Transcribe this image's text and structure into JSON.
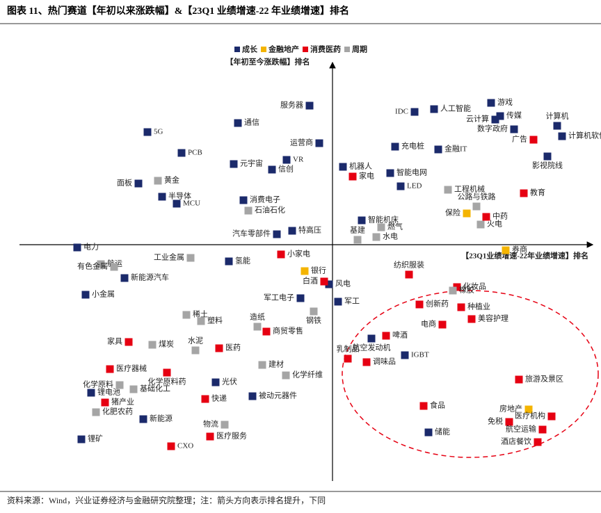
{
  "chart_data": {
    "type": "scatter",
    "title": "图表 11、热门赛道【年初以来涨跌幅】&【23Q1 业绩增速-22 年业绩增速】排名",
    "y_label": "【年初至今涨跌幅】排名",
    "x_label": "【23Q1业绩增速-22年业绩增速】排名",
    "source": "资料来源：Wind，兴业证券经济与金融研究院整理；注：箭头方向表示排名提升，下同",
    "xlim": [
      -450,
      370
    ],
    "ylim": [
      -338,
      257
    ],
    "series": [
      {
        "name": "成长",
        "color": "#1b2a6b",
        "labels": [
          "服务器",
          "5G",
          "通信",
          "PCB",
          "运营商",
          "VR",
          "元宇宙",
          "信创",
          "面板",
          "半导体",
          "MCU",
          "消费电子",
          "汽车零部件",
          "特高压",
          "电力",
          "氢能",
          "新能源汽车",
          "小金属",
          "风电",
          "军工电子",
          "军工",
          "光伏",
          "被动元器件",
          "新能源",
          "锂电池",
          "锂矿",
          "IDC",
          "人工智能",
          "游戏",
          "云计算",
          "传媒",
          "数字政府",
          "计算机",
          "计算机软件",
          "充电桩",
          "金融IT",
          "影视院线",
          "机器人",
          "智能电网",
          "LED",
          "智能机床",
          "航空发动机",
          "IGBT",
          "储能"
        ],
        "x": [
          -33,
          -266,
          -136,
          -217,
          -19,
          -66,
          -142,
          -87,
          -279,
          -245,
          -224,
          -128,
          -80,
          -58,
          -367,
          -149,
          -299,
          -355,
          -5,
          -46,
          8,
          -168,
          -115,
          -272,
          -347,
          -361,
          118,
          146,
          228,
          234,
          241,
          261,
          323,
          330,
          90,
          152,
          309,
          15,
          83,
          98,
          42,
          56,
          104,
          138
        ],
        "values": [
          200,
          162,
          175,
          132,
          146,
          122,
          116,
          108,
          88,
          69,
          59,
          64,
          15,
          20,
          -4,
          -24,
          -48,
          -72,
          -57,
          -77,
          -82,
          -198,
          -218,
          -251,
          -213,
          -280,
          191,
          195,
          204,
          180,
          185,
          166,
          171,
          156,
          141,
          137,
          127,
          112,
          103,
          84,
          35,
          -135,
          -159,
          -270
        ]
      },
      {
        "name": "金融地产",
        "color": "#f4b400",
        "labels": [
          "保险",
          "银行",
          "券商",
          "房地产"
        ],
        "x": [
          193,
          -40,
          249,
          282
        ],
        "values": [
          45,
          -38,
          -8,
          -237
        ]
      },
      {
        "name": "消费医药",
        "color": "#e60012",
        "labels": [
          "家电",
          "教育",
          "广告",
          "中药",
          "小家电",
          "白酒",
          "纺织服装",
          "化妆品",
          "创新药",
          "种植业",
          "美容护理",
          "电商",
          "啤酒",
          "乳制品",
          "调味品",
          "家具",
          "商贸零售",
          "医药",
          "医疗器械",
          "化学原料药",
          "猪产业",
          "快递",
          "CXO",
          "医疗服务",
          "旅游及景区",
          "食品",
          "免税",
          "医疗机构",
          "航空运输",
          "酒店餐饮"
        ],
        "x": [
          29,
          275,
          289,
          221,
          -74,
          -12,
          110,
          179,
          125,
          185,
          200,
          158,
          77,
          22,
          49,
          -293,
          -95,
          -163,
          -320,
          -238,
          -327,
          -183,
          -232,
          -176,
          268,
          131,
          254,
          315,
          302,
          295
        ],
        "values": [
          98,
          74,
          151,
          40,
          -14,
          -53,
          -43,
          -61,
          -86,
          -90,
          -107,
          -115,
          -131,
          -164,
          -169,
          -140,
          -125,
          -149,
          -179,
          -184,
          -227,
          -222,
          -290,
          -276,
          -194,
          -232,
          -255,
          -247,
          -266,
          -284
        ]
      },
      {
        "name": "周期",
        "color": "#a5a5a5",
        "labels": [
          "黄金",
          "石油石化",
          "工程机械",
          "公路与铁路",
          "火电",
          "燃气",
          "基建",
          "水电",
          "工业金属",
          "航运",
          "有色金属",
          "橡胶",
          "钢铁",
          "稀土",
          "塑料",
          "造纸",
          "煤炭",
          "水泥",
          "建材",
          "化学纤维",
          "化学原料",
          "基础化工",
          "化肥农药",
          "物流"
        ],
        "x": [
          -251,
          -121,
          166,
          207,
          213,
          70,
          36,
          63,
          -204,
          -333,
          -314,
          173,
          -27,
          -210,
          -189,
          -108,
          -259,
          -197,
          -101,
          -67,
          -306,
          -286,
          -340,
          -155
        ],
        "values": [
          92,
          49,
          79,
          55,
          29,
          25,
          7,
          11,
          -19,
          -28,
          -32,
          -66,
          -96,
          -101,
          -110,
          -118,
          -144,
          -152,
          -173,
          -188,
          -202,
          -208,
          -241,
          -259
        ]
      }
    ]
  }
}
